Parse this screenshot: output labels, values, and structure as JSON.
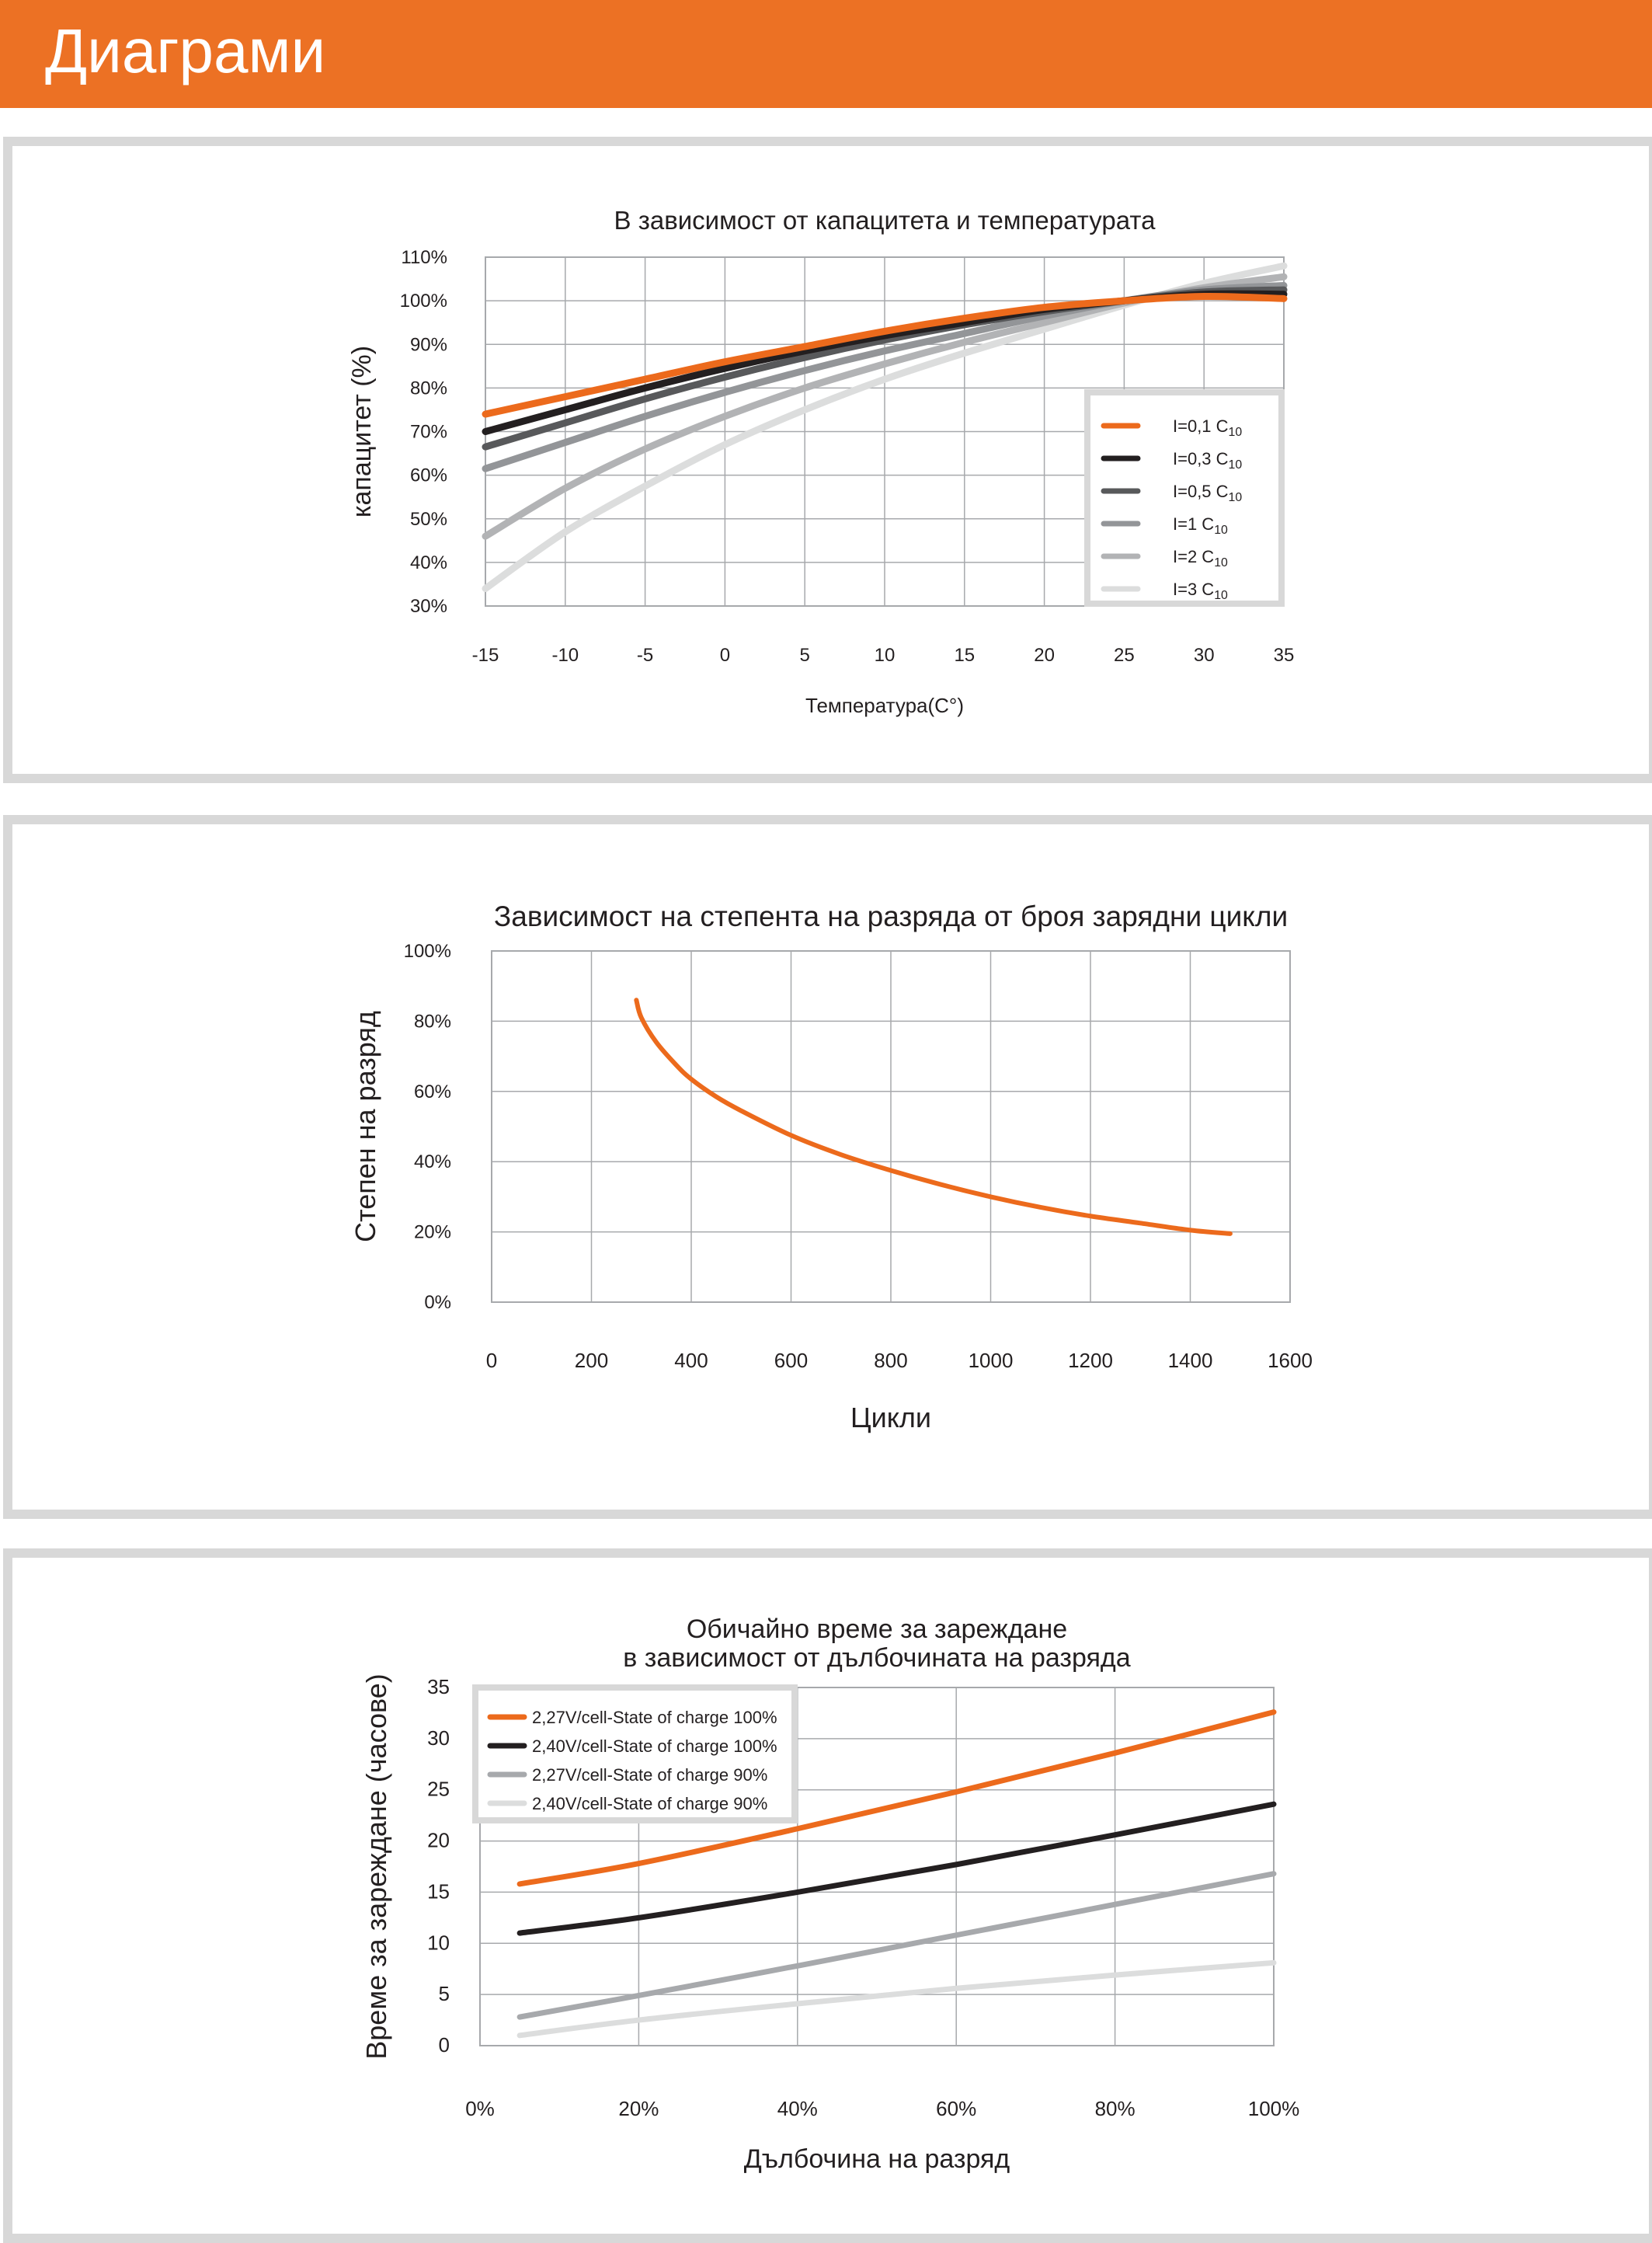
{
  "header": {
    "title": "Диаграми"
  },
  "colors": {
    "accent": "#ec7124",
    "panel_border": "#d8d8d8",
    "grid": "#a7a9ac"
  },
  "chart_data": [
    {
      "type": "line",
      "title": "В зависимост от капацитета и температурата",
      "xlabel": "Температура(C°)",
      "ylabel": "капацитет (%)",
      "xlim": [
        -15,
        35
      ],
      "ylim": [
        30,
        110
      ],
      "xticks": [
        -15,
        -10,
        -5,
        0,
        5,
        10,
        15,
        20,
        25,
        30,
        35
      ],
      "xtick_labels": [
        "-15",
        "-10",
        "-5",
        "0",
        "5",
        "10",
        "15",
        "20",
        "25",
        "30",
        "35"
      ],
      "yticks": [
        30,
        40,
        50,
        60,
        70,
        80,
        90,
        100,
        110
      ],
      "ytick_labels": [
        "30%",
        "40%",
        "50%",
        "60%",
        "70%",
        "80%",
        "90%",
        "100%",
        "110%"
      ],
      "grid": true,
      "legend_position": "right",
      "x": [
        -15,
        -10,
        -5,
        0,
        5,
        10,
        15,
        20,
        25,
        30,
        35
      ],
      "series": [
        {
          "name": "I=0,1",
          "sub": "10",
          "color": "#ec6a1c",
          "values": [
            74,
            78,
            82,
            86,
            89.5,
            93,
            96,
            98.5,
            100,
            101,
            100.5
          ]
        },
        {
          "name": "I=0,3",
          "sub": "10",
          "color": "#231f20",
          "values": [
            70,
            75,
            80,
            84.5,
            88.5,
            92,
            95,
            98,
            100,
            101.5,
            101.5
          ]
        },
        {
          "name": "I=0,5",
          "sub": "10",
          "color": "#58595b",
          "values": [
            66.5,
            72,
            77.5,
            82.5,
            87,
            91,
            94.5,
            97.5,
            100,
            102,
            102.5
          ]
        },
        {
          "name": "I=1",
          "sub": "10",
          "color": "#939598",
          "values": [
            61.5,
            67.5,
            73.5,
            79,
            84,
            88.5,
            92.5,
            96.5,
            100,
            102.5,
            103.5
          ]
        },
        {
          "name": "I=2",
          "sub": "10",
          "color": "#b2b3b5",
          "values": [
            46,
            57,
            66,
            73.5,
            80,
            85.5,
            90.5,
            95,
            99.5,
            103,
            105.5
          ]
        },
        {
          "name": "I=3",
          "sub": "10",
          "color": "#dcdddd",
          "values": [
            34,
            47,
            57.5,
            67,
            75,
            82,
            88,
            93.5,
            99,
            104,
            108
          ]
        }
      ]
    },
    {
      "type": "line",
      "title": "Зависимост на степента на разряда от броя зарядни цикли",
      "xlabel": "Цикли",
      "ylabel": "Степен  на разряд",
      "xlim": [
        0,
        1600
      ],
      "ylim": [
        0,
        100
      ],
      "xticks": [
        0,
        200,
        400,
        600,
        800,
        1000,
        1200,
        1400,
        1600
      ],
      "xtick_labels": [
        "0",
        "200",
        "400",
        "600",
        "800",
        "1000",
        "1200",
        "1400",
        "1600"
      ],
      "yticks": [
        0,
        20,
        40,
        60,
        80,
        100
      ],
      "ytick_labels": [
        "0%",
        "20%",
        "40%",
        "60%",
        "80%",
        "100%"
      ],
      "grid": true,
      "series": [
        {
          "color": "#ec6a1c",
          "x": [
            290,
            300,
            330,
            370,
            400,
            450,
            500,
            600,
            700,
            800,
            900,
            1000,
            1100,
            1200,
            1300,
            1400,
            1480
          ],
          "values": [
            86,
            81,
            74,
            67.5,
            63.5,
            58.5,
            54.5,
            47.5,
            42,
            37.5,
            33.5,
            30,
            27,
            24.5,
            22.5,
            20.5,
            19.5
          ]
        }
      ]
    },
    {
      "type": "line",
      "title": "Обичайно време за зареждане\nв зависимост от дълбочината на разряда",
      "xlabel": "Дълбочина на разряд",
      "ylabel": "Време за зареждане (часове)",
      "xlim": [
        0,
        100
      ],
      "ylim": [
        0,
        35
      ],
      "xticks": [
        0,
        20,
        40,
        60,
        80,
        100
      ],
      "xtick_labels": [
        "0%",
        "20%",
        "40%",
        "60%",
        "80%",
        "100%"
      ],
      "yticks": [
        0,
        5,
        10,
        15,
        20,
        25,
        30,
        35
      ],
      "ytick_labels": [
        "0",
        "5",
        "10",
        "15",
        "20",
        "25",
        "30",
        "35"
      ],
      "grid": true,
      "legend_position": "top-left",
      "x": [
        5,
        20,
        40,
        60,
        80,
        100
      ],
      "series": [
        {
          "name": "2,27V/cell-State of charge 100%",
          "color": "#ec6a1c",
          "values": [
            15.8,
            17.8,
            21.2,
            24.8,
            28.6,
            32.6
          ]
        },
        {
          "name": "2,40V/cell-State of charge 100%",
          "color": "#231f20",
          "values": [
            11,
            12.5,
            15,
            17.7,
            20.6,
            23.6
          ]
        },
        {
          "name": "2,27V/cell-State of charge 90%",
          "color": "#a7a9ac",
          "values": [
            2.8,
            4.9,
            7.8,
            10.8,
            13.8,
            16.8
          ]
        },
        {
          "name": "2,40V/cell-State of charge 90%",
          "color": "#dcdddd",
          "values": [
            1,
            2.5,
            4.1,
            5.6,
            6.9,
            8.1
          ]
        }
      ]
    }
  ]
}
